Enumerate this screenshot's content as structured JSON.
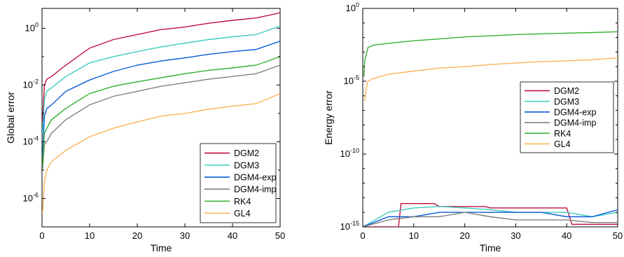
{
  "chart_data": [
    {
      "type": "line",
      "xlabel": "Time",
      "ylabel": "Global error",
      "xlim": [
        0,
        50
      ],
      "ylim": [
        1e-07,
        5
      ],
      "yscale": "log",
      "xticks": [
        0,
        10,
        20,
        30,
        40,
        50
      ],
      "xtick_labels": [
        "0",
        "10",
        "20",
        "30",
        "40",
        "50"
      ],
      "yticks": [
        1e-06,
        0.0001,
        0.01,
        1
      ],
      "ytick_labels": [
        {
          "base": "10",
          "exp": "-6"
        },
        {
          "base": "10",
          "exp": "-4"
        },
        {
          "base": "10",
          "exp": "-2"
        },
        {
          "base": "10",
          "exp": "0"
        }
      ],
      "legend_position": "bottom-right",
      "series": [
        {
          "name": "DGM2",
          "color": "#c0103c",
          "x": [
            0.1,
            0.5,
            1,
            2,
            5,
            10,
            15,
            20,
            25,
            30,
            35,
            40,
            45,
            50
          ],
          "y": [
            0.0005,
            0.01,
            0.016,
            0.02,
            0.05,
            0.2,
            0.4,
            0.6,
            0.9,
            1.1,
            1.5,
            1.9,
            2.3,
            3.5
          ]
        },
        {
          "name": "DGM3",
          "color": "#40cdc0",
          "x": [
            0.1,
            0.5,
            1,
            2,
            5,
            10,
            15,
            20,
            25,
            30,
            35,
            40,
            45,
            50
          ],
          "y": [
            0.0002,
            0.003,
            0.006,
            0.008,
            0.02,
            0.06,
            0.1,
            0.15,
            0.22,
            0.3,
            0.4,
            0.5,
            0.6,
            1.2
          ]
        },
        {
          "name": "DGM4-exp",
          "color": "#0a5cd8",
          "x": [
            0.1,
            0.5,
            1,
            2,
            5,
            10,
            15,
            20,
            25,
            30,
            35,
            40,
            45,
            50
          ],
          "y": [
            3e-05,
            0.0008,
            0.0015,
            0.002,
            0.006,
            0.015,
            0.03,
            0.05,
            0.07,
            0.09,
            0.12,
            0.15,
            0.18,
            0.35
          ]
        },
        {
          "name": "DGM4-imp",
          "color": "#808080",
          "x": [
            0.1,
            0.5,
            1,
            2,
            5,
            10,
            15,
            20,
            25,
            30,
            35,
            40,
            45,
            50
          ],
          "y": [
            1e-05,
            8e-05,
            0.0001,
            0.0002,
            0.0006,
            0.002,
            0.004,
            0.006,
            0.009,
            0.012,
            0.016,
            0.02,
            0.025,
            0.05
          ]
        },
        {
          "name": "RK4",
          "color": "#33b030",
          "x": [
            0.1,
            0.5,
            1,
            2,
            5,
            10,
            15,
            20,
            25,
            30,
            35,
            40,
            45,
            50
          ],
          "y": [
            1.5e-05,
            0.0002,
            0.0003,
            0.0006,
            0.0015,
            0.005,
            0.009,
            0.013,
            0.018,
            0.025,
            0.033,
            0.04,
            0.05,
            0.1
          ]
        },
        {
          "name": "GL4",
          "color": "#fbb45a",
          "x": [
            0.1,
            0.5,
            1,
            2,
            5,
            10,
            15,
            20,
            25,
            30,
            35,
            40,
            45,
            50
          ],
          "y": [
            3e-07,
            4e-06,
            1e-05,
            2e-05,
            5e-05,
            0.00015,
            0.0003,
            0.0005,
            0.0008,
            0.001,
            0.0014,
            0.0018,
            0.0022,
            0.005
          ]
        }
      ]
    },
    {
      "type": "line",
      "xlabel": "Time",
      "ylabel": "Energy error",
      "xlim": [
        0,
        50
      ],
      "ylim": [
        1e-15,
        1
      ],
      "yscale": "log",
      "xticks": [
        0,
        10,
        20,
        30,
        40,
        50
      ],
      "xtick_labels": [
        "0",
        "10",
        "20",
        "30",
        "40",
        "50"
      ],
      "yticks": [
        1e-15,
        1e-10,
        1e-05,
        1
      ],
      "ytick_labels": [
        {
          "base": "10",
          "exp": "-15"
        },
        {
          "base": "10",
          "exp": "-10"
        },
        {
          "base": "10",
          "exp": "-5"
        },
        {
          "base": "10",
          "exp": "0"
        }
      ],
      "legend_position": "center-right",
      "series": [
        {
          "name": "DGM2",
          "color": "#c0103c",
          "x": [
            0,
            7,
            7.5,
            14,
            15,
            24,
            25,
            40,
            41,
            50
          ],
          "y": [
            1e-15,
            1e-15,
            4e-14,
            4e-14,
            2.5e-14,
            2.5e-14,
            2e-14,
            2e-14,
            1.5e-15,
            1.5e-15
          ]
        },
        {
          "name": "DGM3",
          "color": "#40cdc0",
          "x": [
            0,
            5,
            10,
            15,
            20,
            25,
            30,
            35,
            40,
            45,
            50
          ],
          "y": [
            1e-15,
            1e-14,
            2e-14,
            2.5e-14,
            2e-14,
            1.5e-14,
            1e-14,
            1e-14,
            1e-14,
            5e-15,
            1e-14
          ]
        },
        {
          "name": "DGM4-exp",
          "color": "#0a5cd8",
          "x": [
            0,
            5,
            10,
            15,
            20,
            25,
            30,
            35,
            40,
            45,
            50
          ],
          "y": [
            1e-15,
            5e-15,
            5e-15,
            1e-14,
            1e-14,
            1e-14,
            1e-14,
            1e-14,
            5e-15,
            5e-15,
            1.5e-14
          ]
        },
        {
          "name": "DGM4-imp",
          "color": "#808080",
          "x": [
            0,
            5,
            10,
            15,
            20,
            25,
            30,
            35,
            40,
            45,
            50
          ],
          "y": [
            1e-15,
            3e-15,
            5e-15,
            5e-15,
            1e-14,
            5e-15,
            3e-15,
            3e-15,
            3e-15,
            2e-15,
            2e-15
          ]
        },
        {
          "name": "RK4",
          "color": "#33b030",
          "x": [
            0.2,
            0.4,
            0.6,
            0.8,
            1,
            2,
            5,
            10,
            15,
            20,
            25,
            30,
            35,
            40,
            45,
            50
          ],
          "y": [
            2e-05,
            0.0003,
            0.0005,
            0.001,
            0.002,
            0.003,
            0.004,
            0.006,
            0.008,
            0.011,
            0.013,
            0.016,
            0.018,
            0.02,
            0.022,
            0.025
          ]
        },
        {
          "name": "GL4",
          "color": "#fbb45a",
          "x": [
            0.2,
            0.4,
            0.6,
            0.8,
            1,
            2,
            5,
            10,
            15,
            20,
            25,
            30,
            35,
            40,
            45,
            50
          ],
          "y": [
            5e-07,
            5e-07,
            2e-06,
            5e-06,
            1e-05,
            1.5e-05,
            3e-05,
            5e-05,
            8e-05,
            0.0001,
            0.00014,
            0.00018,
            0.00022,
            0.00025,
            0.0003,
            0.0004
          ]
        }
      ]
    }
  ]
}
